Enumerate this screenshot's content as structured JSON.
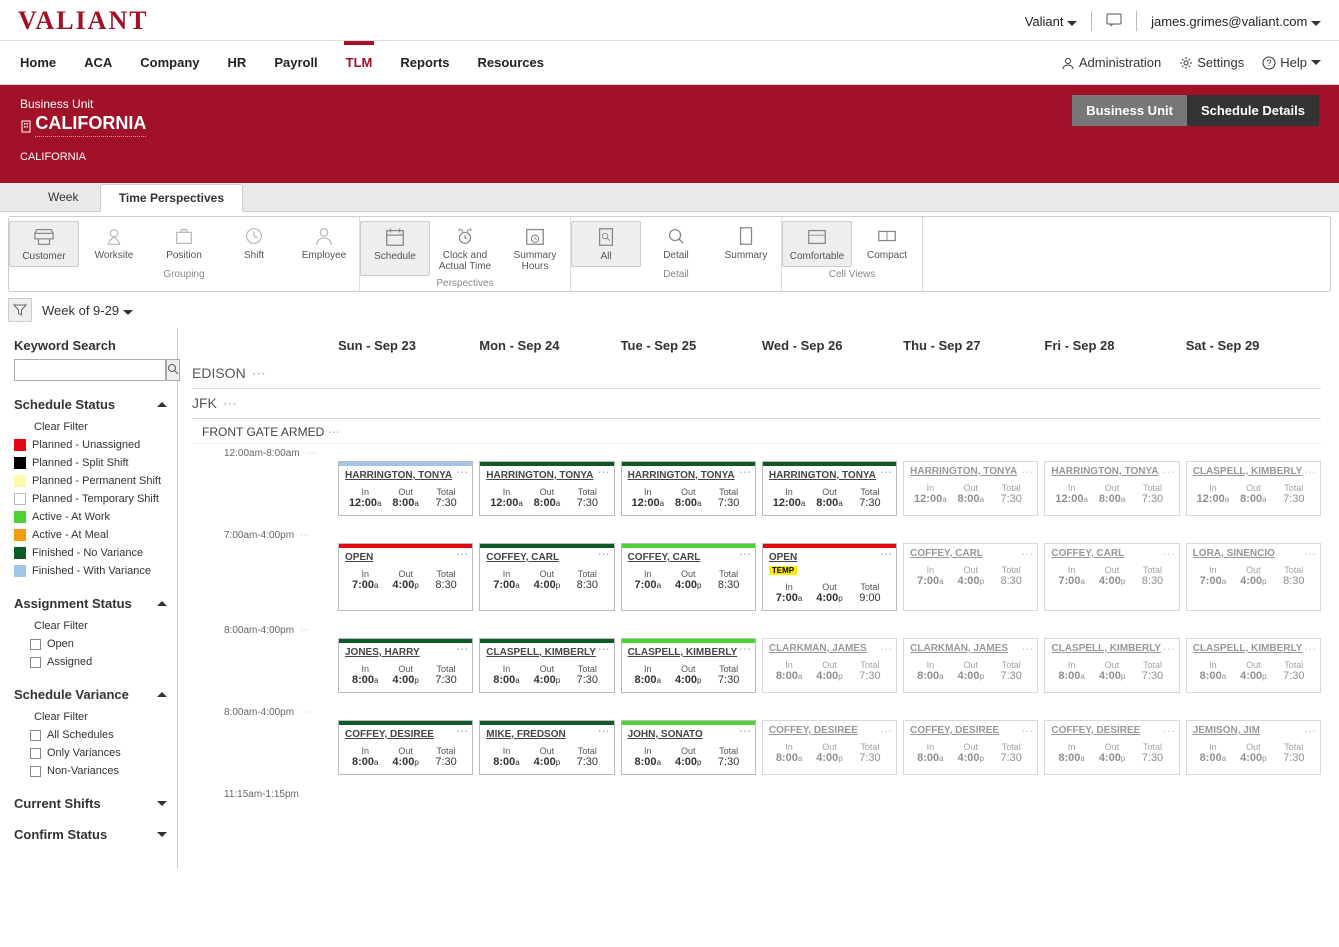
{
  "brand": "VALIANT",
  "user": {
    "company": "Valiant",
    "email": "james.grimes@valiant.com"
  },
  "nav": {
    "left": [
      "Home",
      "ACA",
      "Company",
      "HR",
      "Payroll",
      "TLM",
      "Reports",
      "Resources"
    ],
    "active_index": 5,
    "right": {
      "admin": "Administration",
      "settings": "Settings",
      "help": "Help"
    }
  },
  "banner": {
    "bu_label": "Business Unit",
    "bu_name": "CALIFORNIA",
    "bu_sub": "CALIFORNIA",
    "buttons": {
      "bu": "Business Unit",
      "details": "Schedule Details"
    },
    "active_button": "details"
  },
  "tabs": {
    "week": "Week",
    "tp": "Time Perspectives",
    "active": "tp"
  },
  "toolbar": {
    "groups": [
      {
        "title": "Grouping",
        "items": [
          {
            "key": "customer",
            "label": "Customer",
            "selected": true
          },
          {
            "key": "worksite",
            "label": "Worksite"
          },
          {
            "key": "position",
            "label": "Position"
          },
          {
            "key": "shift",
            "label": "Shift"
          },
          {
            "key": "employee",
            "label": "Employee"
          }
        ]
      },
      {
        "title": "Perspectives",
        "items": [
          {
            "key": "schedule",
            "label": "Schedule",
            "selected": true
          },
          {
            "key": "clock",
            "label": "Clock and Actual Time"
          },
          {
            "key": "summary-hours",
            "label": "Summary Hours"
          }
        ]
      },
      {
        "title": "Detail",
        "items": [
          {
            "key": "all",
            "label": "All",
            "selected": true
          },
          {
            "key": "detail",
            "label": "Detail"
          },
          {
            "key": "summary",
            "label": "Summary"
          }
        ]
      },
      {
        "title": "Cell Views",
        "items": [
          {
            "key": "comfortable",
            "label": "Comfortable",
            "selected": true
          },
          {
            "key": "compact",
            "label": "Compact"
          }
        ]
      }
    ]
  },
  "week_selector": "Week of 9-29",
  "sidebar": {
    "keyword_label": "Keyword Search",
    "schedule_status": {
      "title": "Schedule Status",
      "clear": "Clear Filter",
      "items": [
        {
          "color": "#e30613",
          "label": "Planned - Unassigned"
        },
        {
          "color": "#000000",
          "label": "Planned - Split Shift"
        },
        {
          "color": "#fff9b0",
          "label": "Planned - Permanent Shift"
        },
        {
          "color": "#ffffff",
          "label": "Planned - Temporary Shift",
          "border": "#bbb"
        },
        {
          "color": "#4cd137",
          "label": "Active - At Work"
        },
        {
          "color": "#f39c12",
          "label": "Active - At Meal"
        },
        {
          "color": "#0b5a27",
          "label": "Finished - No Variance"
        },
        {
          "color": "#9fc5e8",
          "label": "Finished - With Variance"
        }
      ]
    },
    "assignment_status": {
      "title": "Assignment Status",
      "clear": "Clear Filter",
      "items": [
        "Open",
        "Assigned"
      ]
    },
    "schedule_variance": {
      "title": "Schedule Variance",
      "clear": "Clear Filter",
      "items": [
        "All Schedules",
        "Only Variances",
        "Non-Variances"
      ]
    },
    "current_shifts": "Current Shifts",
    "confirm_status": "Confirm Status"
  },
  "days": [
    "Sun - Sep 23",
    "Mon - Sep 24",
    "Tue - Sep 25",
    "Wed - Sep 26",
    "Thu - Sep 27",
    "Fri - Sep 28",
    "Sat - Sep 29"
  ],
  "sections": [
    "EDISON",
    "JFK"
  ],
  "subsection": "FRONT GATE ARMED",
  "time_labels": {
    "in": "In",
    "out": "Out",
    "total": "Total"
  },
  "rows": [
    {
      "shift_label": "12:00am-8:00am",
      "cards": [
        {
          "name": "HARRINGTON, TONYA",
          "status": "#9fc5e8",
          "in": "12:00",
          "inS": "a",
          "out": "8:00",
          "outS": "a",
          "total": "7:30"
        },
        {
          "name": "HARRINGTON, TONYA",
          "status": "#0b5a27",
          "in": "12:00",
          "inS": "a",
          "out": "8:00",
          "outS": "a",
          "total": "7:30"
        },
        {
          "name": "HARRINGTON, TONYA",
          "status": "#0b5a27",
          "in": "12:00",
          "inS": "a",
          "out": "8:00",
          "outS": "a",
          "total": "7:30"
        },
        {
          "name": "HARRINGTON, TONYA",
          "status": "#0b5a27",
          "in": "12:00",
          "inS": "a",
          "out": "8:00",
          "outS": "a",
          "total": "7:30"
        },
        {
          "name": "HARRINGTON, TONYA",
          "status": "",
          "faded": true,
          "in": "12:00",
          "inS": "a",
          "out": "8:00",
          "outS": "a",
          "total": "7:30"
        },
        {
          "name": "HARRINGTON, TONYA",
          "status": "",
          "faded": true,
          "in": "12:00",
          "inS": "a",
          "out": "8:00",
          "outS": "a",
          "total": "7:30"
        },
        {
          "name": "CLASPELL, KIMBERLY",
          "status": "",
          "faded": true,
          "in": "12:00",
          "inS": "a",
          "out": "8:00",
          "outS": "a",
          "total": "7:30"
        }
      ]
    },
    {
      "shift_label": "7:00am-4:00pm",
      "cards": [
        {
          "name": "OPEN",
          "status": "#e30613",
          "in": "7:00",
          "inS": "a",
          "out": "4:00",
          "outS": "p",
          "total": "8:30"
        },
        {
          "name": "COFFEY, CARL",
          "status": "#0b5a27",
          "in": "7:00",
          "inS": "a",
          "out": "4:00",
          "outS": "p",
          "total": "8:30"
        },
        {
          "name": "COFFEY, CARL",
          "status": "#4cd137",
          "in": "7:00",
          "inS": "a",
          "out": "4:00",
          "outS": "p",
          "total": "8:30"
        },
        {
          "name": "OPEN",
          "status": "#e30613",
          "temp": "TEMP",
          "in": "7:00",
          "inS": "a",
          "out": "4:00",
          "outS": "p",
          "total": "9:00"
        },
        {
          "name": "COFFEY, CARL",
          "status": "",
          "faded": true,
          "in": "7:00",
          "inS": "a",
          "out": "4:00",
          "outS": "p",
          "total": "8:30"
        },
        {
          "name": "COFFEY, CARL",
          "status": "",
          "faded": true,
          "in": "7:00",
          "inS": "a",
          "out": "4:00",
          "outS": "p",
          "total": "8:30"
        },
        {
          "name": "LORA, SINENCIO",
          "status": "",
          "faded": true,
          "in": "7:00",
          "inS": "a",
          "out": "4:00",
          "outS": "p",
          "total": "8:30"
        }
      ]
    },
    {
      "shift_label": "8:00am-4:00pm",
      "cards": [
        {
          "name": "JONES, HARRY",
          "status": "#0b5a27",
          "in": "8:00",
          "inS": "a",
          "out": "4:00",
          "outS": "p",
          "total": "7:30"
        },
        {
          "name": "CLASPELL, KIMBERLY",
          "status": "#0b5a27",
          "in": "8:00",
          "inS": "a",
          "out": "4:00",
          "outS": "p",
          "total": "7:30"
        },
        {
          "name": "CLASPELL, KIMBERLY",
          "status": "#4cd137",
          "in": "8:00",
          "inS": "a",
          "out": "4:00",
          "outS": "p",
          "total": "7:30"
        },
        {
          "name": "CLARKMAN, JAMES",
          "status": "",
          "faded": true,
          "in": "8:00",
          "inS": "a",
          "out": "4:00",
          "outS": "p",
          "total": "7:30"
        },
        {
          "name": "CLARKMAN, JAMES",
          "status": "",
          "faded": true,
          "in": "8:00",
          "inS": "a",
          "out": "4:00",
          "outS": "p",
          "total": "7:30"
        },
        {
          "name": "CLASPELL, KIMBERLY",
          "status": "",
          "faded": true,
          "in": "8:00",
          "inS": "a",
          "out": "4:00",
          "outS": "p",
          "total": "7:30"
        },
        {
          "name": "CLASPELL, KIMBERLY",
          "status": "",
          "faded": true,
          "in": "8:00",
          "inS": "a",
          "out": "4:00",
          "outS": "p",
          "total": "7:30"
        }
      ]
    },
    {
      "shift_label": "8:00am-4:00pm",
      "cards": [
        {
          "name": "COFFEY, DESIREE",
          "status": "#0b5a27",
          "in": "8:00",
          "inS": "a",
          "out": "4:00",
          "outS": "p",
          "total": "7:30"
        },
        {
          "name": "MIKE, FREDSON",
          "status": "#0b5a27",
          "in": "8:00",
          "inS": "a",
          "out": "4:00",
          "outS": "p",
          "total": "7:30"
        },
        {
          "name": "JOHN, SONATO",
          "status": "#4cd137",
          "in": "8:00",
          "inS": "a",
          "out": "4:00",
          "outS": "p",
          "total": "7:30"
        },
        {
          "name": "COFFEY, DESIREE",
          "status": "",
          "faded": true,
          "in": "8:00",
          "inS": "a",
          "out": "4:00",
          "outS": "p",
          "total": "7:30"
        },
        {
          "name": "COFFEY, DESIREE",
          "status": "",
          "faded": true,
          "in": "8:00",
          "inS": "a",
          "out": "4:00",
          "outS": "p",
          "total": "7:30"
        },
        {
          "name": "COFFEY, DESIREE",
          "status": "",
          "faded": true,
          "in": "8:00",
          "inS": "a",
          "out": "4:00",
          "outS": "p",
          "total": "7:30"
        },
        {
          "name": "JEMISON, JIM",
          "status": "",
          "faded": true,
          "in": "8:00",
          "inS": "a",
          "out": "4:00",
          "outS": "p",
          "total": "7:30"
        }
      ]
    }
  ],
  "footer_shift": "11:15am-1:15pm"
}
